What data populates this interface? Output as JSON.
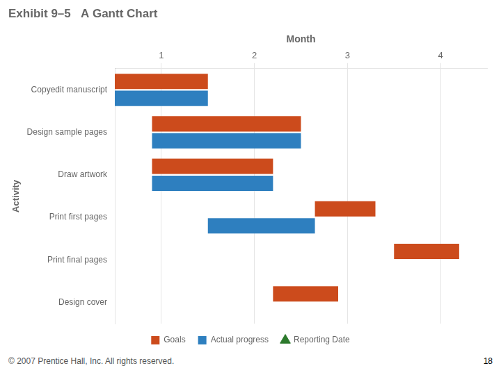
{
  "chart_data": {
    "type": "bar",
    "orientation": "horizontal",
    "title": "Exhibit 9–5   A Gantt Chart",
    "xlabel": "Month",
    "ylabel": "Activity",
    "annotations": [
      "© 2007 Prentice Hall, Inc. All rights reserved.",
      "18"
    ],
    "categories": [
      "Copyedit manuscript",
      "Design sample pages",
      "Draw artwork",
      "Print first pages",
      "Print final pages",
      "Design cover"
    ],
    "series": [
      {
        "name": "Goals",
        "color": "#cc4b1c",
        "values": [
          [
            0.5,
            1.5
          ],
          [
            0.9,
            2.5
          ],
          [
            0.9,
            2.2
          ],
          [
            2.65,
            3.3
          ],
          [
            3.5,
            4.2
          ],
          [
            2.2,
            2.9
          ]
        ]
      },
      {
        "name": "Actual progress",
        "color": "#2e7fbf",
        "values": [
          [
            0.5,
            1.5
          ],
          [
            0.9,
            2.5
          ],
          [
            0.9,
            2.2
          ],
          [
            1.5,
            2.65
          ],
          null,
          null
        ]
      },
      {
        "name": "Reporting Date",
        "type": "scatter",
        "marker": "triangle",
        "color": "#2d7a2d",
        "values": [
          null,
          null,
          null,
          null,
          null,
          null
        ]
      }
    ],
    "xlim": [
      0.5,
      4.5
    ],
    "xticks": [
      1,
      2,
      3,
      4
    ],
    "grid": true,
    "legend": "bottom"
  }
}
